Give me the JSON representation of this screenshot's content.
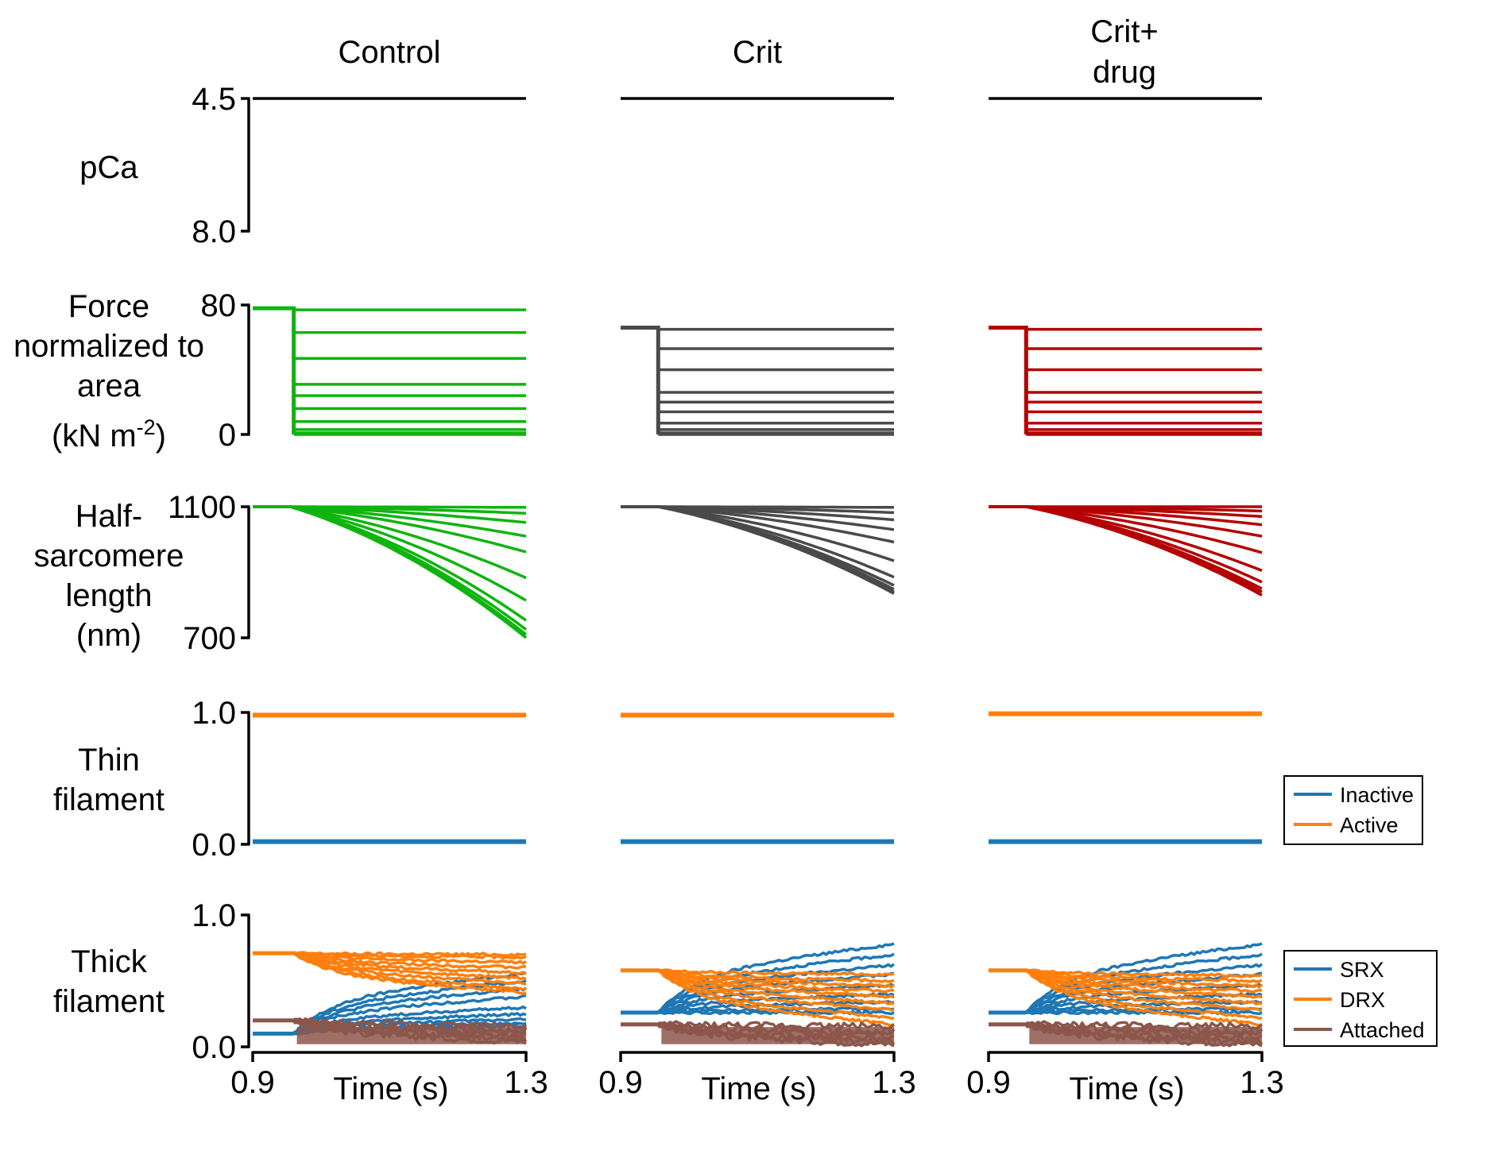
{
  "colors": {
    "control": "#0fb40f",
    "crit": "#4a4a4a",
    "drug": "#b40000",
    "inactive": "#1f77b4",
    "active": "#ff7f0e",
    "srx": "#1f77b4",
    "drx": "#ff7f0e",
    "attached": "#8c564b",
    "axis": "#000000"
  },
  "columns": [
    {
      "key": "control",
      "title_lines": [
        "Control"
      ]
    },
    {
      "key": "crit",
      "title_lines": [
        "Crit"
      ]
    },
    {
      "key": "drug",
      "title_lines": [
        "Crit+",
        "drug"
      ]
    }
  ],
  "rows": [
    {
      "key": "pca",
      "label_lines": [
        "pCa"
      ],
      "yticks": [
        "4.5",
        "8.0"
      ]
    },
    {
      "key": "force",
      "label_lines": [
        "Force",
        "normalized to",
        "area"
      ],
      "label_unit": {
        "pre": "(kN m",
        "sup": "-2",
        "post": ")"
      },
      "yticks": [
        "80",
        "0"
      ]
    },
    {
      "key": "length",
      "label_lines": [
        "Half-",
        "sarcomere",
        "length",
        "(nm)"
      ],
      "yticks": [
        "1100",
        "700"
      ]
    },
    {
      "key": "thin",
      "label_lines": [
        "Thin",
        "filament"
      ],
      "yticks": [
        "1.0",
        "0.0"
      ]
    },
    {
      "key": "thick",
      "label_lines": [
        "Thick",
        "filament"
      ],
      "yticks": [
        "1.0",
        "0.0"
      ]
    }
  ],
  "xaxis": {
    "label": "Time (s)",
    "ticks": [
      "0.9",
      "1.3"
    ]
  },
  "legends": {
    "thin": [
      {
        "label": "Inactive",
        "color": "#1f77b4"
      },
      {
        "label": "Active",
        "color": "#ff7f0e"
      }
    ],
    "thick": [
      {
        "label": "SRX",
        "color": "#1f77b4"
      },
      {
        "label": "DRX",
        "color": "#ff7f0e"
      },
      {
        "label": "Attached",
        "color": "#8c564b"
      }
    ]
  },
  "chart_data": [
    {
      "panel": "pCa",
      "type": "line",
      "xlim": [
        0.9,
        1.3
      ],
      "ylim": [
        8.0,
        4.5
      ],
      "series": [
        {
          "column": "control",
          "x": [
            0.9,
            1.3
          ],
          "y": [
            4.5,
            4.5
          ]
        },
        {
          "column": "crit",
          "x": [
            0.9,
            1.3
          ],
          "y": [
            4.5,
            4.5
          ]
        },
        {
          "column": "drug",
          "x": [
            0.9,
            1.3
          ],
          "y": [
            4.5,
            4.5
          ]
        }
      ]
    },
    {
      "panel": "Force",
      "type": "line",
      "xlim": [
        0.9,
        1.3
      ],
      "ylim": [
        0,
        80
      ],
      "step_time": {
        "control": 0.96,
        "crit": 0.955,
        "drug": 0.955
      },
      "pre_step": {
        "control": 78,
        "crit": 66,
        "drug": 66
      },
      "levels": {
        "control": [
          77,
          63,
          47,
          31,
          24,
          16,
          8,
          3,
          1,
          0
        ],
        "crit": [
          65,
          53,
          40,
          26,
          20,
          14,
          7,
          3,
          1,
          0
        ],
        "drug": [
          65,
          53,
          40,
          26,
          20,
          14,
          7,
          3,
          1,
          0
        ]
      }
    },
    {
      "panel": "Half-sarcomere length",
      "type": "line",
      "xlim": [
        0.9,
        1.3
      ],
      "ylim": [
        700,
        1100
      ],
      "start": 1100,
      "onset": {
        "control": 0.955,
        "crit": 0.955,
        "drug": 0.955
      },
      "ends": {
        "control": [
          1098,
          1080,
          1052,
          1010,
          962,
          883,
          814,
          753,
          725,
          710,
          700
        ],
        "crit": [
          1098,
          1082,
          1060,
          1030,
          992,
          935,
          885,
          860,
          848,
          840,
          835
        ],
        "drug": [
          1100,
          1087,
          1070,
          1045,
          1010,
          960,
          905,
          870,
          850,
          840,
          830
        ]
      }
    },
    {
      "panel": "Thin filament",
      "type": "line",
      "xlim": [
        0.9,
        1.3
      ],
      "ylim": [
        0,
        1
      ],
      "series": [
        {
          "name": "Inactive",
          "values": {
            "control": 0.02,
            "crit": 0.02,
            "drug": 0.02
          }
        },
        {
          "name": "Active",
          "values": {
            "control": 0.98,
            "crit": 0.98,
            "drug": 0.99
          }
        }
      ]
    },
    {
      "panel": "Thick filament",
      "type": "line",
      "xlim": [
        0.9,
        1.3
      ],
      "ylim": [
        0,
        1
      ],
      "step_time": {
        "control": 0.96,
        "crit": 0.955,
        "drug": 0.955
      },
      "series": [
        {
          "name": "SRX",
          "pre": {
            "control": 0.1,
            "crit": 0.26,
            "drug": 0.26
          },
          "ends": {
            "control": [
              0.56,
              0.5,
              0.44,
              0.38,
              0.3,
              0.25,
              0.21,
              0.18,
              0.16
            ],
            "crit": [
              0.78,
              0.7,
              0.62,
              0.55,
              0.47,
              0.4,
              0.34,
              0.29,
              0.26
            ],
            "drug": [
              0.78,
              0.7,
              0.62,
              0.55,
              0.47,
              0.4,
              0.34,
              0.29,
              0.26
            ]
          }
        },
        {
          "name": "DRX",
          "pre": {
            "control": 0.71,
            "crit": 0.58,
            "drug": 0.58
          },
          "ends": {
            "control": [
              0.7,
              0.68,
              0.64,
              0.6,
              0.56,
              0.52,
              0.48,
              0.44,
              0.41
            ],
            "crit": [
              0.55,
              0.5,
              0.46,
              0.42,
              0.38,
              0.33,
              0.28,
              0.22,
              0.17
            ],
            "drug": [
              0.54,
              0.5,
              0.46,
              0.42,
              0.38,
              0.33,
              0.28,
              0.22,
              0.17
            ]
          }
        },
        {
          "name": "Attached",
          "pre": {
            "control": 0.2,
            "crit": 0.17,
            "drug": 0.17
          },
          "ends": {
            "control": [
              0.16,
              0.13,
              0.1,
              0.08,
              0.06,
              0.04
            ],
            "crit": [
              0.16,
              0.12,
              0.09,
              0.06,
              0.04,
              0.02
            ],
            "drug": [
              0.16,
              0.12,
              0.09,
              0.06,
              0.04,
              0.02
            ]
          }
        }
      ]
    }
  ]
}
